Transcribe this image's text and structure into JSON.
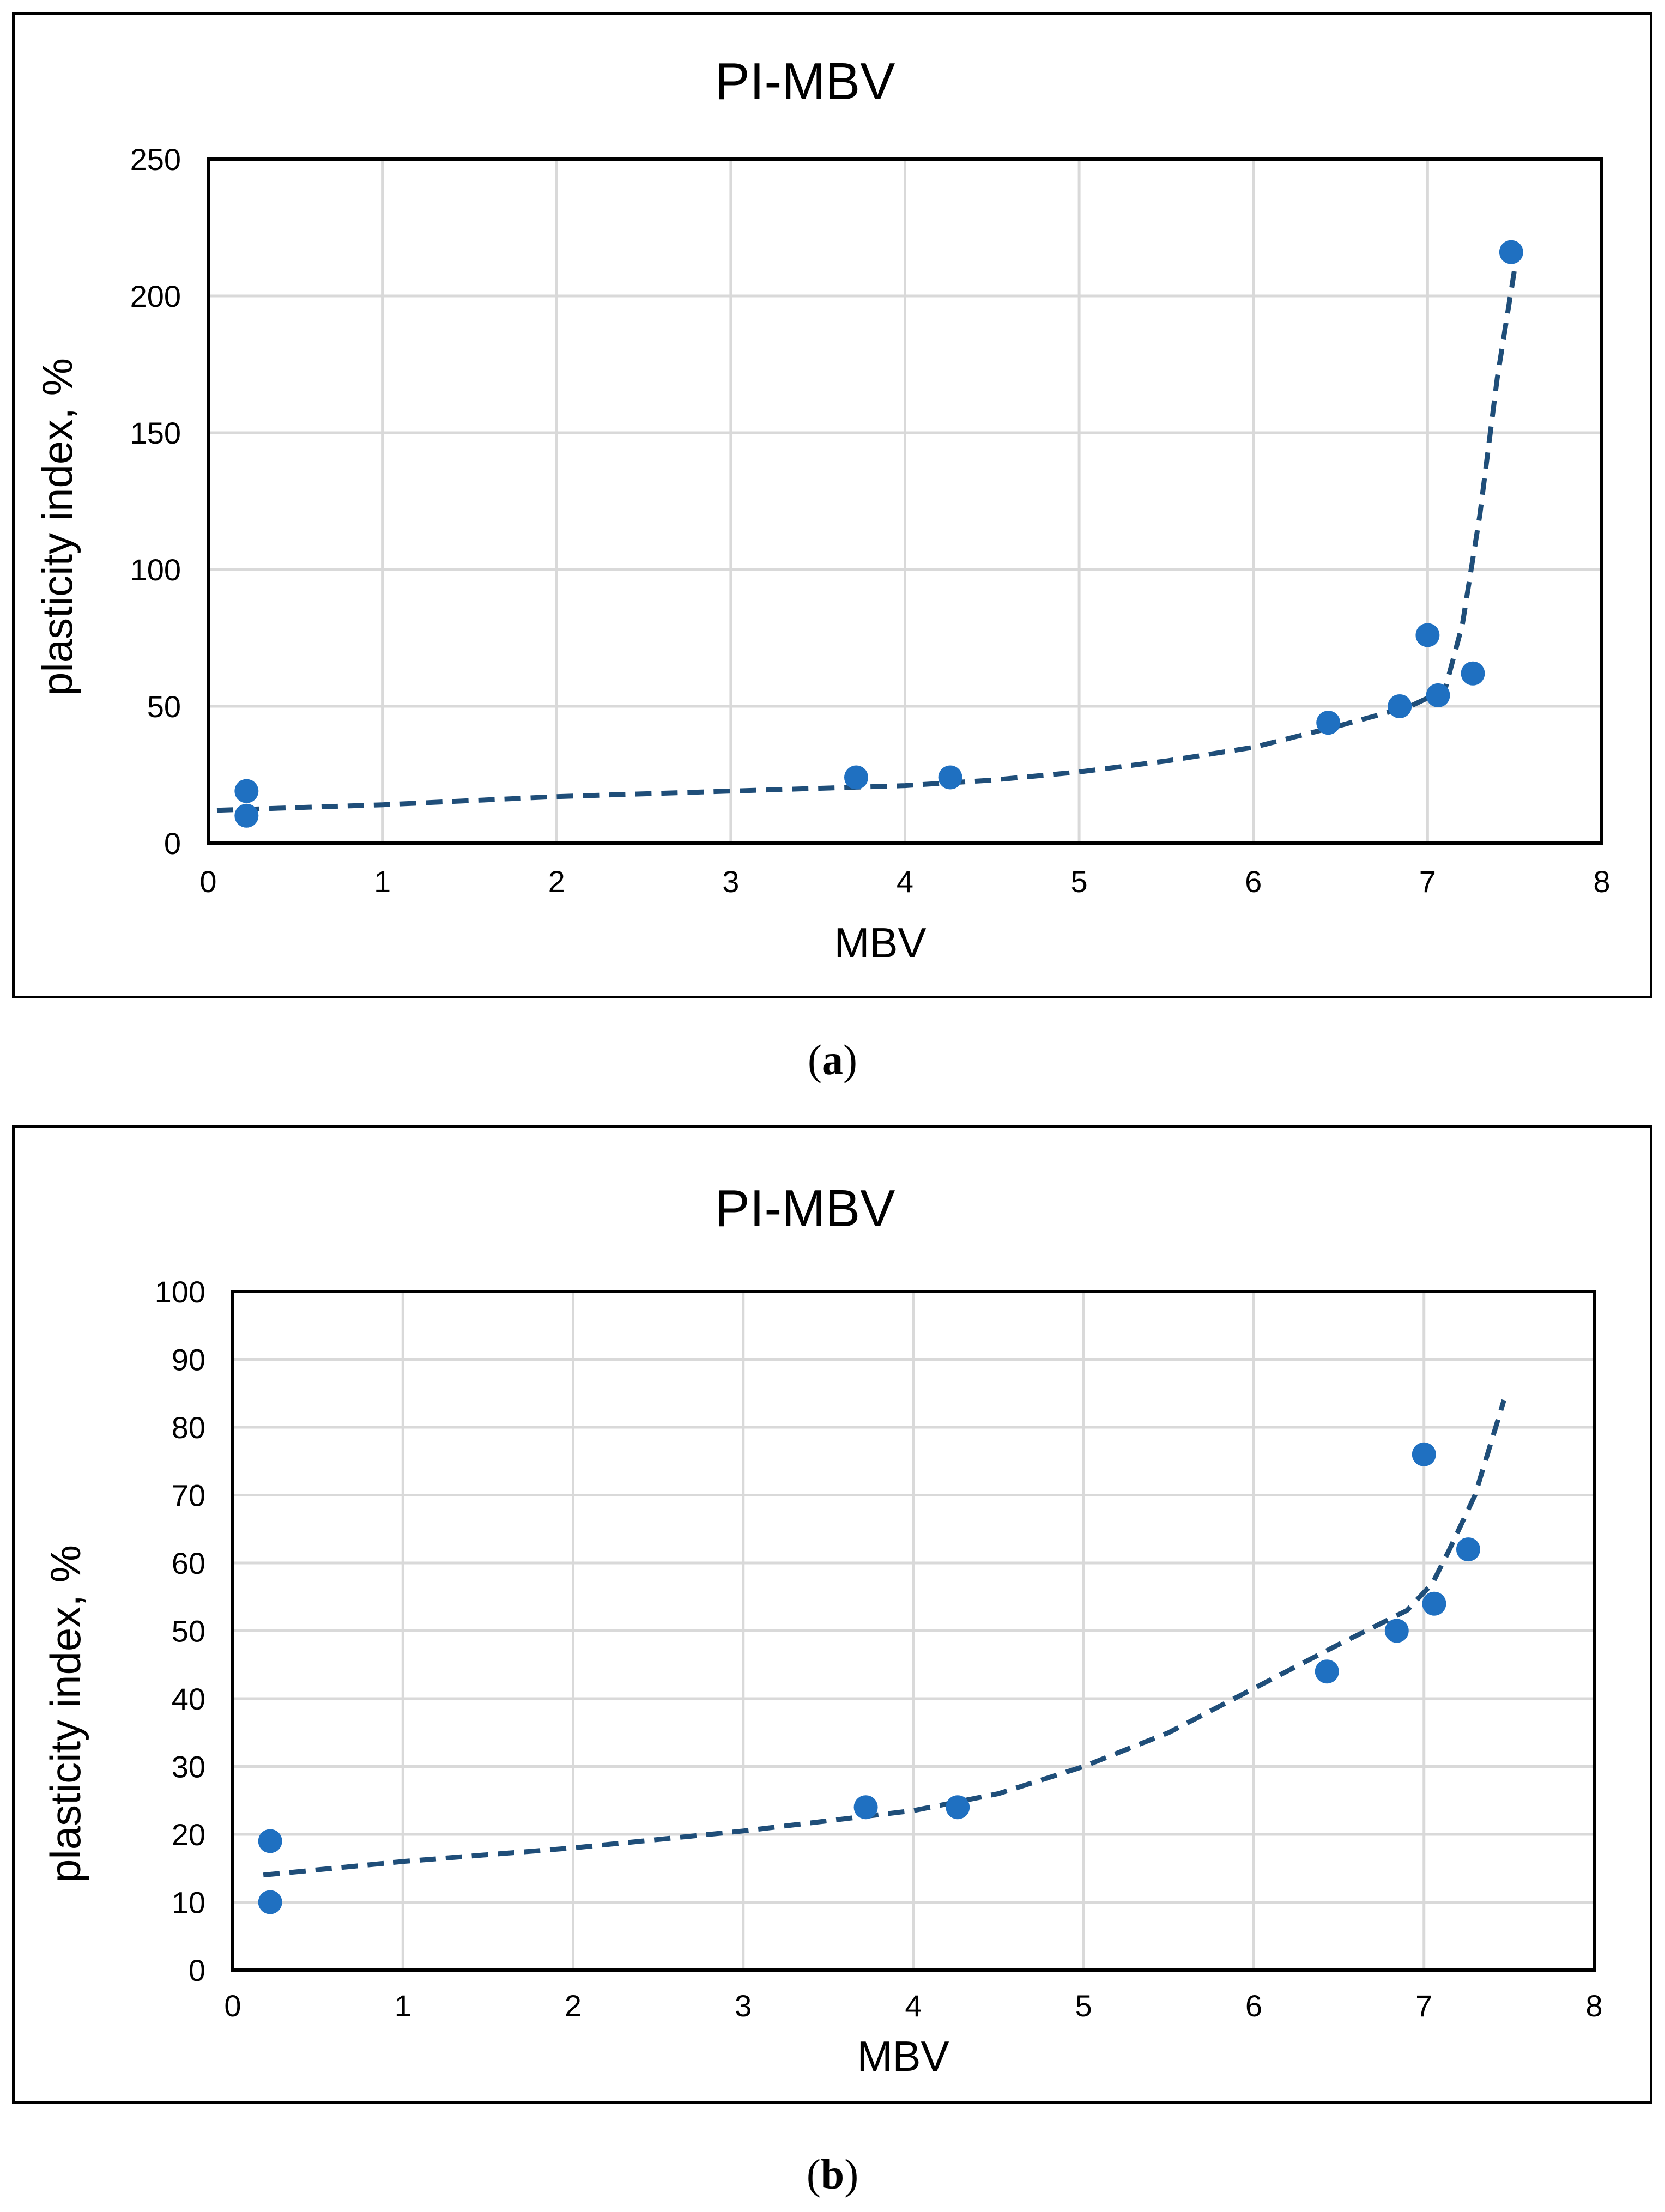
{
  "chart_data": [
    {
      "type": "scatter",
      "title": "PI-MBV",
      "xlabel": "MBV",
      "ylabel": "plasticity index, %",
      "xlim": [
        0,
        8
      ],
      "ylim": [
        0,
        250
      ],
      "xticks": [
        "0",
        "1",
        "2",
        "3",
        "4",
        "5",
        "6",
        "7",
        "8"
      ],
      "yticks": [
        "0",
        "50",
        "100",
        "150",
        "200",
        "250"
      ],
      "grid": true,
      "points": [
        {
          "x": 0.22,
          "y": 19
        },
        {
          "x": 0.22,
          "y": 10
        },
        {
          "x": 3.72,
          "y": 24
        },
        {
          "x": 4.26,
          "y": 24
        },
        {
          "x": 6.43,
          "y": 44
        },
        {
          "x": 6.84,
          "y": 50
        },
        {
          "x": 7.0,
          "y": 76
        },
        {
          "x": 7.06,
          "y": 54
        },
        {
          "x": 7.26,
          "y": 62
        },
        {
          "x": 7.48,
          "y": 216
        }
      ],
      "trend": [
        {
          "x": 0.05,
          "y": 12
        },
        {
          "x": 1.0,
          "y": 14
        },
        {
          "x": 2.0,
          "y": 17
        },
        {
          "x": 3.0,
          "y": 19
        },
        {
          "x": 4.0,
          "y": 21
        },
        {
          "x": 4.5,
          "y": 23
        },
        {
          "x": 5.0,
          "y": 26
        },
        {
          "x": 5.5,
          "y": 30
        },
        {
          "x": 6.0,
          "y": 35
        },
        {
          "x": 6.5,
          "y": 43
        },
        {
          "x": 6.9,
          "y": 50
        },
        {
          "x": 7.1,
          "y": 56
        },
        {
          "x": 7.2,
          "y": 80
        },
        {
          "x": 7.3,
          "y": 120
        },
        {
          "x": 7.4,
          "y": 170
        },
        {
          "x": 7.52,
          "y": 218
        }
      ],
      "colors": {
        "point": "#1F70C1",
        "trend": "#1F4E79",
        "grid": "#D9D9D9"
      },
      "caption_label": "a"
    },
    {
      "type": "scatter",
      "title": "PI-MBV",
      "xlabel": "MBV",
      "ylabel": "plasticity index, %",
      "xlim": [
        0,
        8
      ],
      "ylim": [
        0,
        100
      ],
      "xticks": [
        "0",
        "1",
        "2",
        "3",
        "4",
        "5",
        "6",
        "7",
        "8"
      ],
      "yticks": [
        "0",
        "10",
        "20",
        "30",
        "40",
        "50",
        "60",
        "70",
        "80",
        "90",
        "100"
      ],
      "grid": true,
      "points": [
        {
          "x": 0.22,
          "y": 19
        },
        {
          "x": 0.22,
          "y": 10
        },
        {
          "x": 3.72,
          "y": 24
        },
        {
          "x": 4.26,
          "y": 24
        },
        {
          "x": 6.43,
          "y": 44
        },
        {
          "x": 6.84,
          "y": 50
        },
        {
          "x": 7.0,
          "y": 76
        },
        {
          "x": 7.06,
          "y": 54
        },
        {
          "x": 7.26,
          "y": 62
        }
      ],
      "trend": [
        {
          "x": 0.18,
          "y": 14
        },
        {
          "x": 1.0,
          "y": 16
        },
        {
          "x": 2.0,
          "y": 18
        },
        {
          "x": 3.0,
          "y": 20.5
        },
        {
          "x": 4.0,
          "y": 23.5
        },
        {
          "x": 4.5,
          "y": 26
        },
        {
          "x": 5.0,
          "y": 30
        },
        {
          "x": 5.5,
          "y": 35
        },
        {
          "x": 6.0,
          "y": 41.5
        },
        {
          "x": 6.5,
          "y": 48
        },
        {
          "x": 6.9,
          "y": 53
        },
        {
          "x": 7.05,
          "y": 57
        },
        {
          "x": 7.15,
          "y": 62
        },
        {
          "x": 7.3,
          "y": 70
        },
        {
          "x": 7.47,
          "y": 84
        }
      ],
      "colors": {
        "point": "#1F70C1",
        "trend": "#1F4E79",
        "grid": "#D9D9D9"
      },
      "caption_label": "b"
    }
  ]
}
